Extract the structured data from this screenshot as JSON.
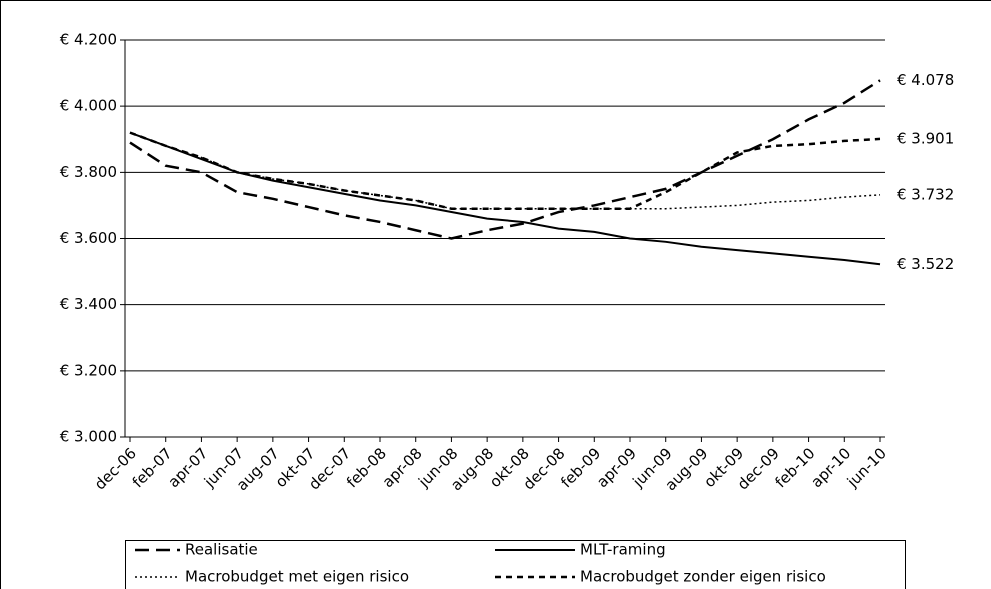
{
  "chart_data": {
    "type": "line",
    "categories": [
      "dec-06",
      "feb-07",
      "apr-07",
      "jun-07",
      "aug-07",
      "okt-07",
      "dec-07",
      "feb-08",
      "apr-08",
      "jun-08",
      "aug-08",
      "okt-08",
      "dec-08",
      "feb-09",
      "apr-09",
      "jun-09",
      "aug-09",
      "okt-09",
      "dec-09",
      "feb-10",
      "apr-10",
      "jun-10"
    ],
    "series": [
      {
        "name": "Realisatie",
        "color": "#000000",
        "dash": "14,7",
        "width": 2.5,
        "values": [
          3890,
          3820,
          3800,
          3740,
          3720,
          3695,
          3670,
          3650,
          3625,
          3600,
          3625,
          3645,
          3680,
          3700,
          3725,
          3750,
          3800,
          3850,
          3900,
          3960,
          4010,
          4078
        ],
        "value_labels": [
          null,
          null,
          null,
          null,
          null,
          null,
          null,
          null,
          null,
          null,
          null,
          null,
          null,
          null,
          null,
          null,
          null,
          null,
          null,
          null,
          null,
          "€ 4.078"
        ]
      },
      {
        "name": "MLT-raming",
        "color": "#000000",
        "dash": "none",
        "width": 2,
        "values": [
          3920,
          3880,
          3840,
          3800,
          3775,
          3755,
          3735,
          3715,
          3700,
          3680,
          3660,
          3650,
          3630,
          3620,
          3600,
          3590,
          3575,
          3565,
          3555,
          3545,
          3535,
          3522
        ],
        "value_labels": [
          null,
          null,
          null,
          null,
          null,
          null,
          null,
          null,
          null,
          null,
          null,
          null,
          null,
          null,
          null,
          null,
          null,
          null,
          null,
          null,
          null,
          "€ 3.522"
        ]
      },
      {
        "name": "Macrobudget met eigen risico",
        "color": "#000000",
        "dash": "2,3",
        "width": 1.5,
        "values": [
          3920,
          3880,
          3845,
          3800,
          3780,
          3765,
          3745,
          3730,
          3715,
          3690,
          3690,
          3690,
          3690,
          3690,
          3690,
          3690,
          3695,
          3700,
          3710,
          3715,
          3725,
          3732
        ],
        "value_labels": [
          null,
          null,
          null,
          null,
          null,
          null,
          null,
          null,
          null,
          null,
          null,
          null,
          null,
          null,
          null,
          null,
          null,
          null,
          null,
          null,
          null,
          "€ 3.732"
        ]
      },
      {
        "name": "Macrobudget zonder eigen risico",
        "color": "#000000",
        "dash": "6,5",
        "width": 2.5,
        "values": [
          3920,
          3880,
          3845,
          3800,
          3780,
          3765,
          3745,
          3730,
          3715,
          3690,
          3690,
          3690,
          3690,
          3690,
          3690,
          3740,
          3800,
          3860,
          3880,
          3885,
          3895,
          3901
        ],
        "value_labels": [
          null,
          null,
          null,
          null,
          null,
          null,
          null,
          null,
          null,
          null,
          null,
          null,
          null,
          null,
          null,
          null,
          null,
          null,
          null,
          null,
          null,
          "€ 3.901"
        ]
      }
    ],
    "ylim": [
      3000,
      4200
    ],
    "yticks": [
      {
        "value": 3000,
        "label": "€ 3.000"
      },
      {
        "value": 3200,
        "label": "€ 3.200"
      },
      {
        "value": 3400,
        "label": "€ 3.400"
      },
      {
        "value": 3600,
        "label": "€ 3.600"
      },
      {
        "value": 3800,
        "label": "€ 3.800"
      },
      {
        "value": 4000,
        "label": "€ 4.000"
      },
      {
        "value": 4200,
        "label": "€ 4.200"
      }
    ],
    "grid": true,
    "legend": "bottom"
  }
}
